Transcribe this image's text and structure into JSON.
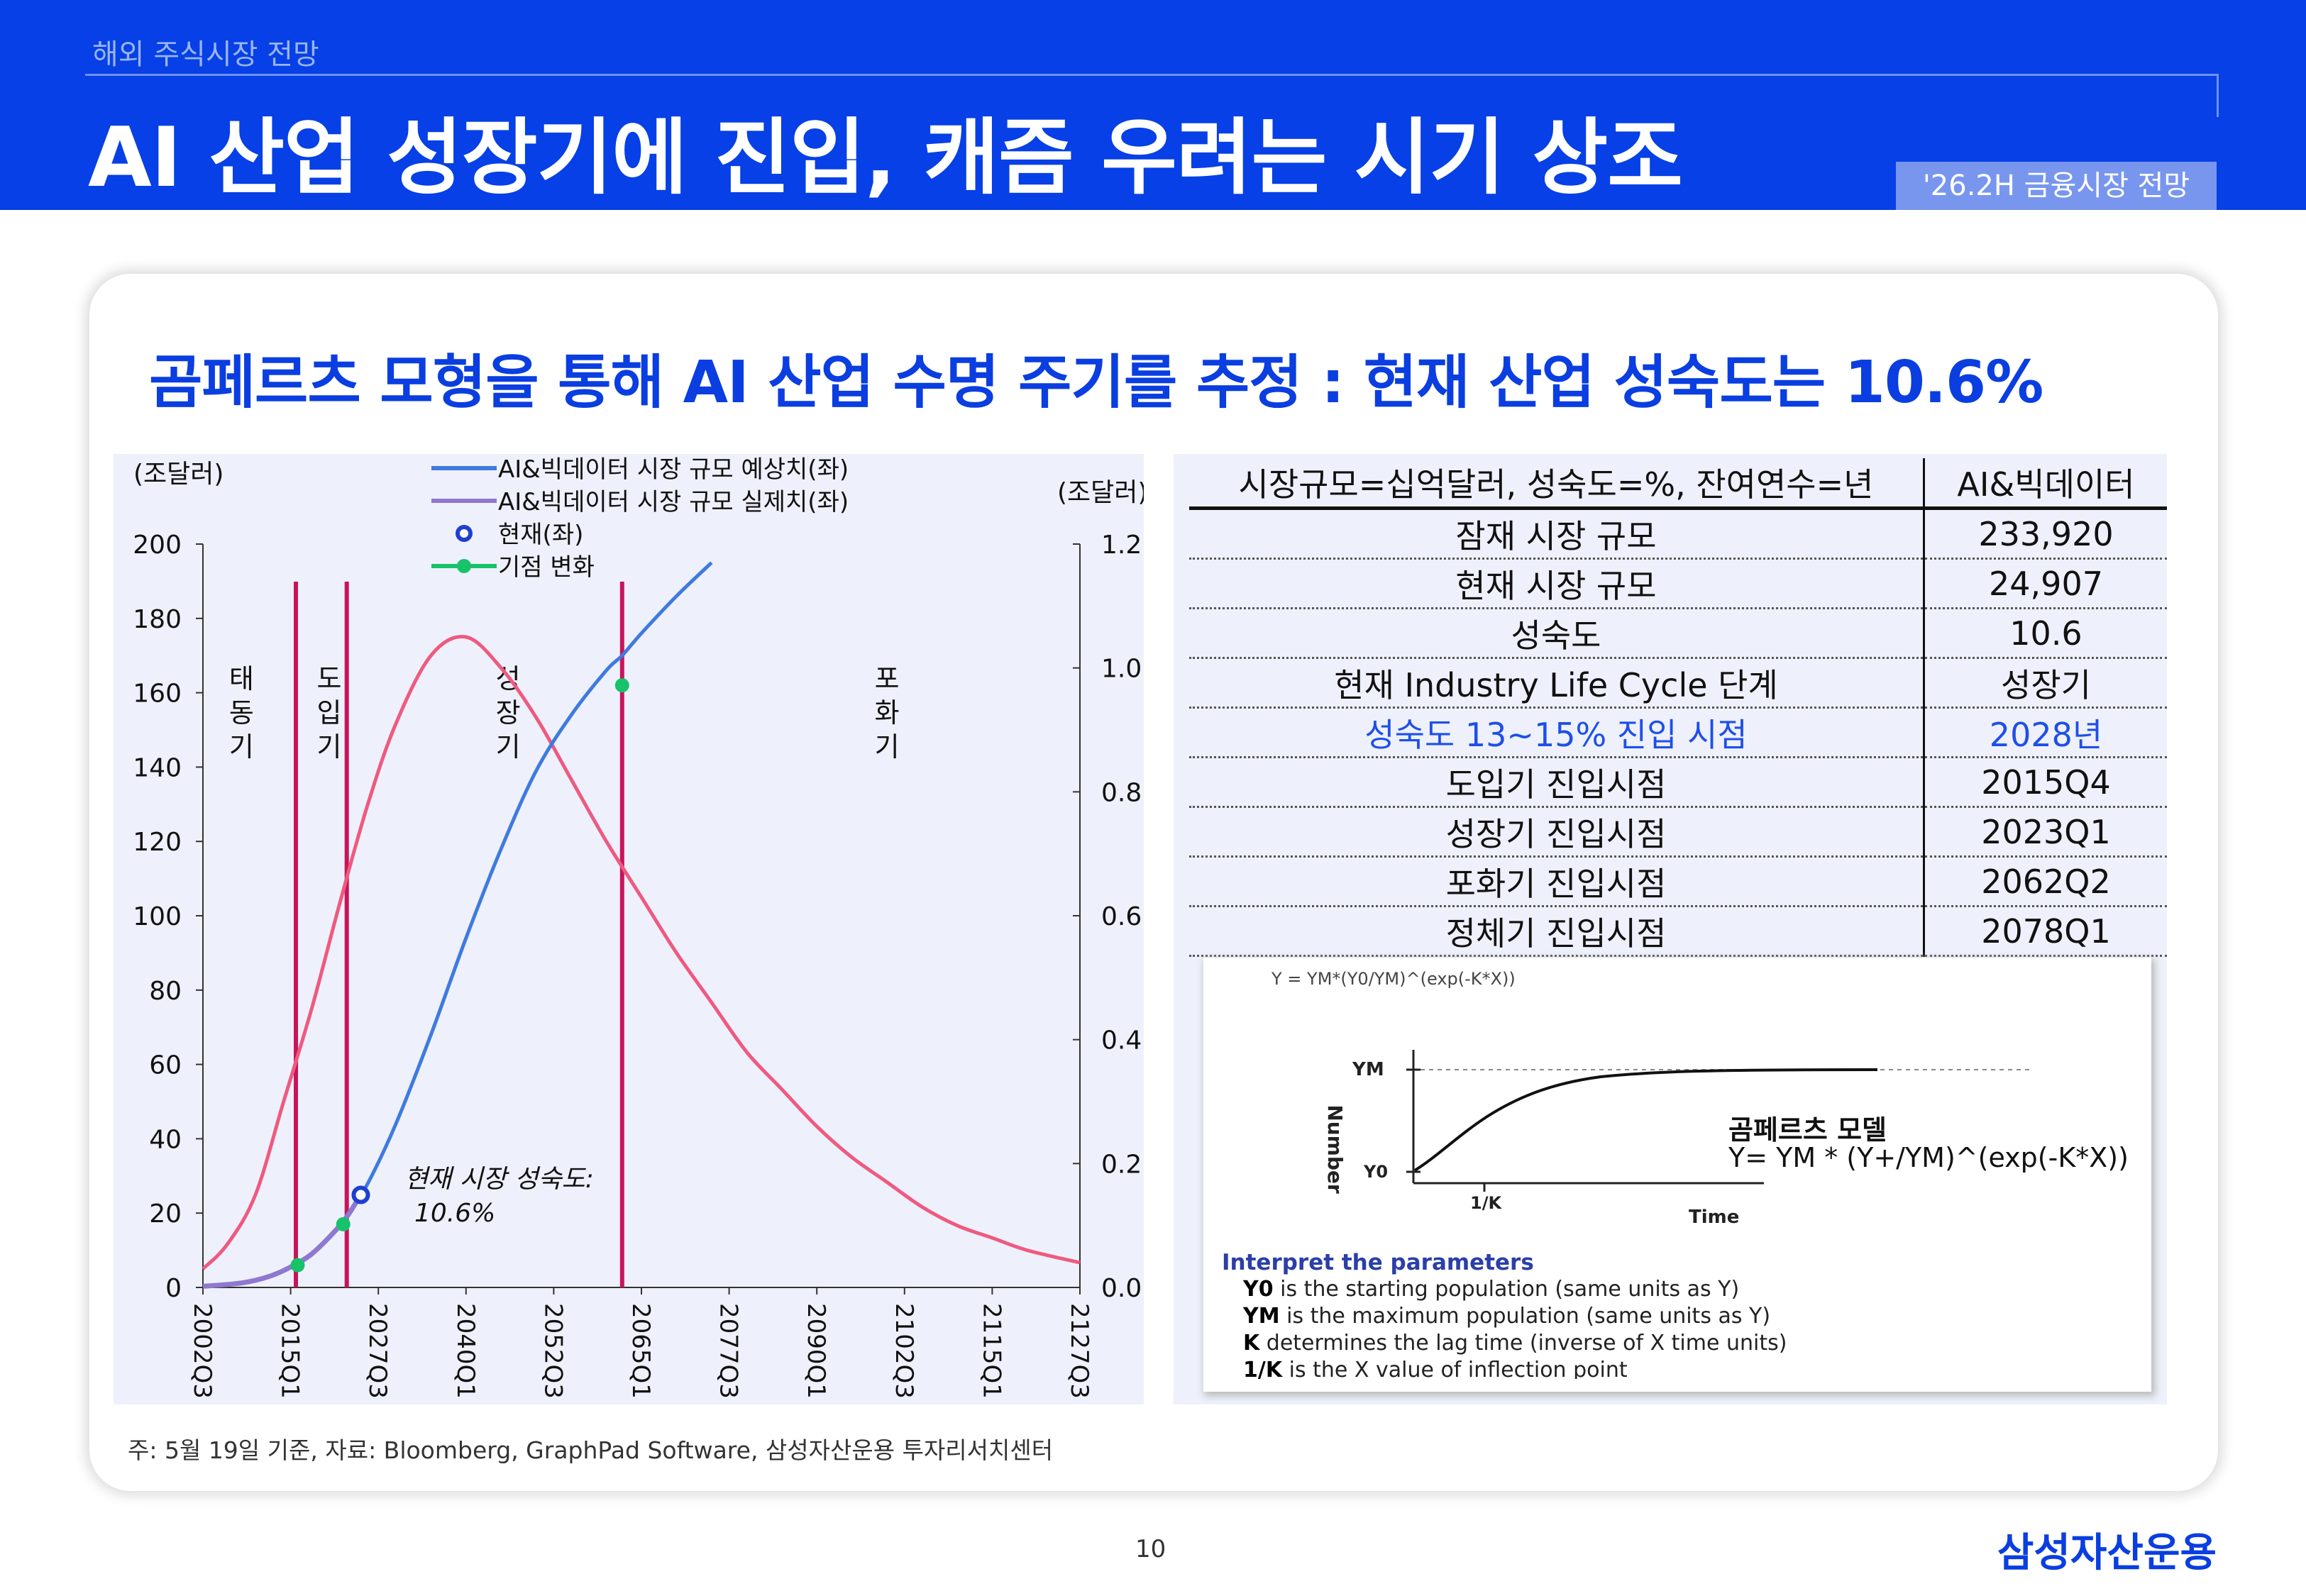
{
  "header": {
    "section": "해외 주식시장 전망",
    "title": "AI 산업 성장기에 진입, 캐즘 우려는 시기 상조",
    "tag": "'26.2H 금융시장 전망"
  },
  "card": {
    "title": "곰페르츠 모형을 통해 AI 산업 수명 주기를 추정 : 현재 산업 성숙도는 10.6%"
  },
  "chart_data": {
    "type": "line",
    "left_unit": "(조달러)",
    "right_unit": "(조달러)",
    "ylim": [
      0,
      200
    ],
    "y2lim": [
      0,
      1.2
    ],
    "left_ticks": [
      "200",
      "180",
      "160",
      "140",
      "120",
      "100",
      "80",
      "60",
      "40",
      "20",
      "0"
    ],
    "right_ticks": [
      "1.2",
      "1.0",
      "0.8",
      "0.6",
      "0.4",
      "0.2",
      "0.0"
    ],
    "x_ticks": [
      "2002Q3",
      "2015Q1",
      "2027Q3",
      "2040Q1",
      "2052Q3",
      "2065Q1",
      "2077Q3",
      "2090Q1",
      "2102Q3",
      "2115Q1",
      "2127Q3"
    ],
    "legend": [
      "AI&빅데이터 시장 규모 예상치(좌)",
      "AI&빅데이터 시장 규모 실제치(좌)",
      "현재(좌)",
      "기점 변화"
    ],
    "colors": {
      "forecast": "#3f7ae0",
      "actual": "#8f78d0",
      "current": "#1e3fd0",
      "milestone": "#16c26a",
      "rate": "#ef5a80",
      "phase": "#c8145a"
    },
    "phases": [
      {
        "label": "태동기",
        "x": 2008.0
      },
      {
        "label": "도입기",
        "x": 2020.5
      },
      {
        "label": "성장기",
        "x": 2046.0
      },
      {
        "label": "포화기",
        "x": 2100.0
      }
    ],
    "phase_lines_x": [
      2015.75,
      2023.0,
      2062.25
    ],
    "forecast_series": {
      "name": "AI&빅데이터 시장 규모 예상치(좌)",
      "x": [
        2002.5,
        2008,
        2012,
        2015,
        2018,
        2021,
        2023,
        2026,
        2030,
        2035,
        2040,
        2045,
        2050,
        2055,
        2060,
        2062.25,
        2065,
        2070,
        2075,
        2080
      ],
      "values": [
        0.3,
        1.2,
        3,
        5.5,
        9,
        14.5,
        19,
        28,
        44,
        68,
        94,
        118,
        139,
        154,
        166,
        170,
        176,
        186,
        195,
        202
      ]
    },
    "actual_series": {
      "name": "AI&빅데이터 시장 규모 실제치(좌)",
      "x": [
        2002.5,
        2008,
        2012,
        2015,
        2018,
        2021,
        2023,
        2025
      ],
      "values": [
        0.3,
        1.2,
        3,
        5.5,
        9,
        14.5,
        19,
        24.9
      ]
    },
    "rate_series": {
      "name": "",
      "x": [
        2002.5,
        2006,
        2010,
        2014,
        2018,
        2022,
        2026,
        2030,
        2035,
        2040,
        2045,
        2050,
        2055,
        2060,
        2065,
        2070,
        2075,
        2080,
        2085,
        2090,
        2095,
        2100,
        2105,
        2110,
        2115,
        2120,
        2127.5
      ],
      "values": [
        0.03,
        0.07,
        0.15,
        0.3,
        0.45,
        0.62,
        0.78,
        0.91,
        1.02,
        1.05,
        1.0,
        0.92,
        0.82,
        0.72,
        0.63,
        0.54,
        0.46,
        0.38,
        0.32,
        0.26,
        0.21,
        0.17,
        0.13,
        0.1,
        0.08,
        0.06,
        0.04
      ]
    },
    "current_point": {
      "x": 2025,
      "y": 24.9
    },
    "milestones": [
      {
        "x": 2016.0,
        "y": 6
      },
      {
        "x": 2022.5,
        "y": 17
      },
      {
        "x": 2062.25,
        "y": 162
      }
    ],
    "annotation": [
      "현재 시장 성숙도:",
      "10.6%"
    ]
  },
  "table": {
    "header": [
      "시장규모=십억달러, 성숙도=%, 잔여연수=년",
      "AI&빅데이터"
    ],
    "rows": [
      [
        "잠재 시장 규모",
        "233,920"
      ],
      [
        "현재 시장 규모",
        "24,907"
      ],
      [
        "성숙도",
        "10.6"
      ],
      [
        "현재 Industry Life Cycle 단계",
        "성장기"
      ],
      [
        "성숙도 13~15% 진입 시점",
        "2028년"
      ],
      [
        "도입기 진입시점",
        "2015Q4"
      ],
      [
        "성장기 진입시점",
        "2023Q1"
      ],
      [
        "포화기 진입시점",
        "2062Q2"
      ],
      [
        "정체기 진입시점",
        "2078Q1"
      ]
    ]
  },
  "formula": {
    "equation": "Y = YM*(Y0/YM)^(exp(-K*X))",
    "ylabel": "Number",
    "xlabel": "Time",
    "ym": "YM",
    "y0": "Y0",
    "one_k": "1/K",
    "model_name": "곰페르츠 모델",
    "model_eq": "Y= YM * (Y+/YM)^(exp(-K*X))",
    "interp_title": "Interpret the parameters",
    "interp": [
      {
        "key": "Y0",
        "text": " is the starting population (same units as Y)"
      },
      {
        "key": "YM",
        "text": " is the maximum population (same units as Y)"
      },
      {
        "key": "K",
        "text": " determines the lag time (inverse of X time units)"
      },
      {
        "key": "1/K",
        "text": " is the X value of inflection point"
      }
    ]
  },
  "footer": {
    "note": "주: 5월 19일 기준, 자료: Bloomberg, GraphPad Software, 삼성자산운용 투자리서치센터",
    "page": "10",
    "brand": "삼성자산운용"
  }
}
